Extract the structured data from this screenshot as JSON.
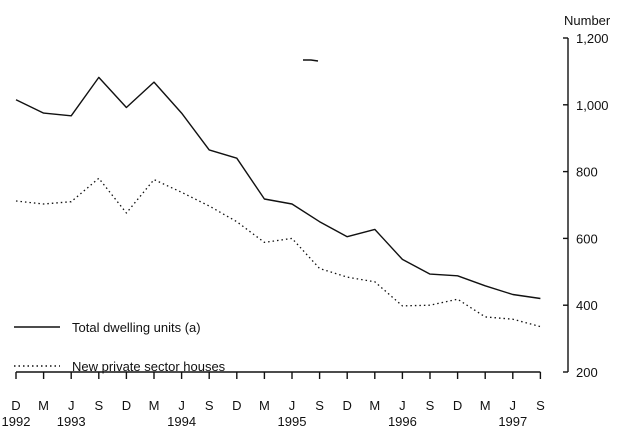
{
  "chart_data": {
    "type": "line",
    "title": "",
    "xlabel": "",
    "ylabel": "Number",
    "ylim": [
      200,
      1200
    ],
    "yticks": [
      "1,200",
      "1,000",
      "800",
      "600",
      "400",
      "200"
    ],
    "yticks_values": [
      1200,
      1000,
      800,
      600,
      400,
      200
    ],
    "grid": false,
    "legend_position": "bottom-left",
    "categories": [
      "D",
      "M",
      "J",
      "S",
      "D",
      "M",
      "J",
      "S",
      "D",
      "M",
      "J",
      "S",
      "D",
      "M",
      "J",
      "S",
      "D",
      "M",
      "J",
      "S"
    ],
    "years": [
      {
        "label": "1992",
        "index": 0
      },
      {
        "label": "1993",
        "index": 2
      },
      {
        "label": "1994",
        "index": 6
      },
      {
        "label": "1995",
        "index": 10
      },
      {
        "label": "1996",
        "index": 14
      },
      {
        "label": "1997",
        "index": 18
      }
    ],
    "series": [
      {
        "name": "Total dwelling units (a)",
        "style": "solid",
        "values": [
          1015,
          975,
          967,
          1082,
          992,
          1068,
          975,
          865,
          840,
          718,
          703,
          650,
          605,
          627,
          537,
          493,
          488,
          458,
          432,
          420
        ]
      },
      {
        "name": "New private sector houses",
        "style": "dotted",
        "values": [
          712,
          703,
          710,
          780,
          676,
          776,
          738,
          697,
          650,
          588,
          600,
          510,
          484,
          470,
          398,
          400,
          418,
          365,
          358,
          336
        ]
      }
    ]
  },
  "colors": {
    "line": "#111111",
    "background": "#ffffff"
  }
}
